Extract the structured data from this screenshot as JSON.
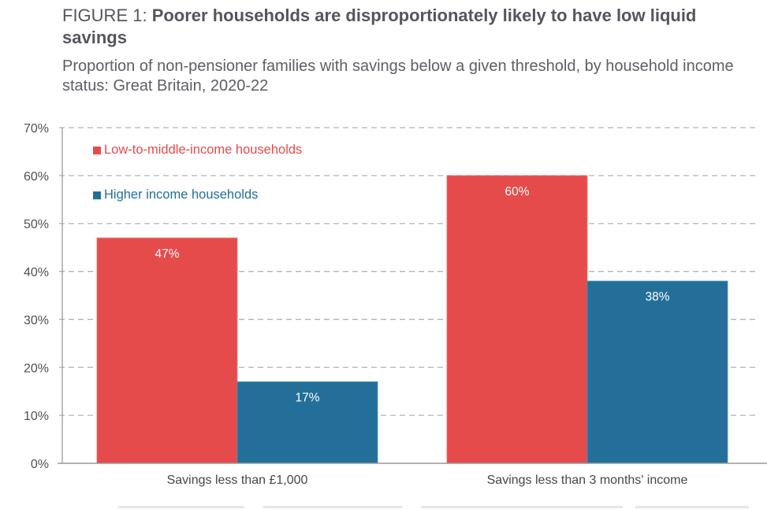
{
  "header": {
    "figure_label": "FIGURE 1: ",
    "title": "Poorer households are disproportionately likely to have low liquid savings",
    "subtitle": "Proportion of non-pensioner families with savings below a given threshold, by household income status: Great Britain, 2020-22"
  },
  "colors": {
    "low_to_middle": "#e64b4b",
    "higher": "#236f99",
    "grid": "#b4b4b4",
    "axis": "#9a9a9a",
    "tick_text": "#505059",
    "label_text": "#ffffff"
  },
  "chart_data": {
    "type": "bar",
    "title": "Poorer households are disproportionately likely to have low liquid savings",
    "subtitle": "Proportion of non-pensioner families with savings below a given threshold, by household income status: Great Britain, 2020-22",
    "xlabel": "",
    "ylabel": "",
    "categories": [
      "Savings less than £1,000",
      "Savings less than 3 months' income"
    ],
    "series": [
      {
        "name": "Low-to-middle-income households",
        "values": [
          47,
          60
        ],
        "labels": [
          "47%",
          "60%"
        ],
        "color": "#e64b4b"
      },
      {
        "name": "Higher income households",
        "values": [
          17,
          38
        ],
        "labels": [
          "17%",
          "38%"
        ],
        "color": "#236f99"
      }
    ],
    "ylim": [
      0,
      70
    ],
    "yticks": [
      0,
      10,
      20,
      30,
      40,
      50,
      60,
      70
    ],
    "ytick_labels": [
      "0%",
      "10%",
      "20%",
      "30%",
      "40%",
      "50%",
      "60%",
      "70%"
    ],
    "grid": true,
    "grid_style": "dashed",
    "legend_position": "top-left"
  }
}
